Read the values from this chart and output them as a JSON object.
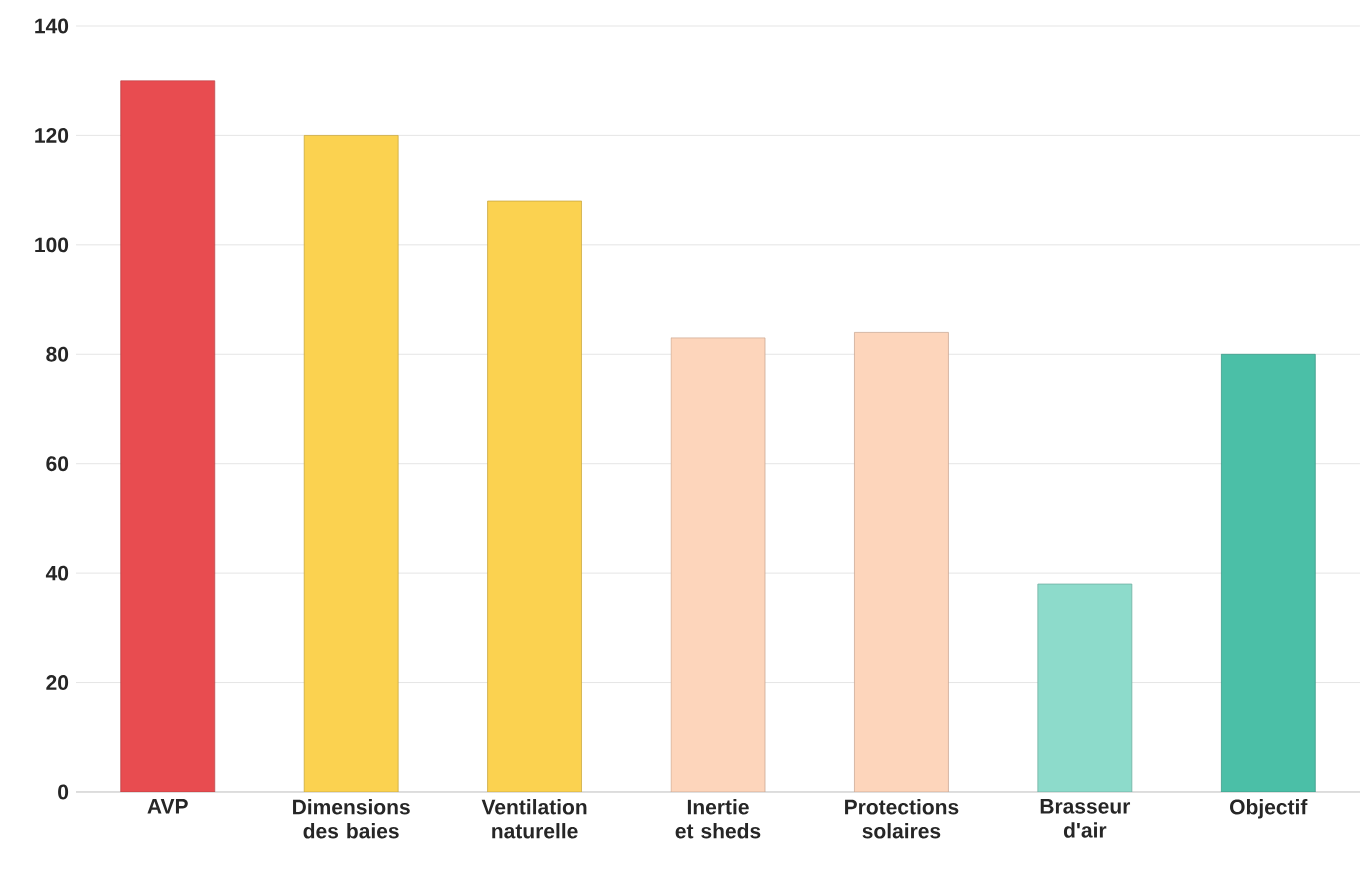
{
  "chart_data": {
    "type": "bar",
    "categories": [
      "AVP",
      "Dimensions des baies",
      "Ventilation naturelle",
      "Inertie et sheds",
      "Protections solaires",
      "Brasseur d'air",
      "Objectif"
    ],
    "values": [
      130,
      120,
      108,
      83,
      84,
      38,
      80
    ],
    "colors": [
      "#e84c50",
      "#fbd250",
      "#fbd250",
      "#fdd5bb",
      "#fdd5bb",
      "#8ddbcb",
      "#4bbfa7"
    ],
    "ylim": [
      0,
      140
    ],
    "yticks": [
      0,
      20,
      40,
      60,
      80,
      100,
      120,
      140
    ],
    "grid": "y"
  }
}
